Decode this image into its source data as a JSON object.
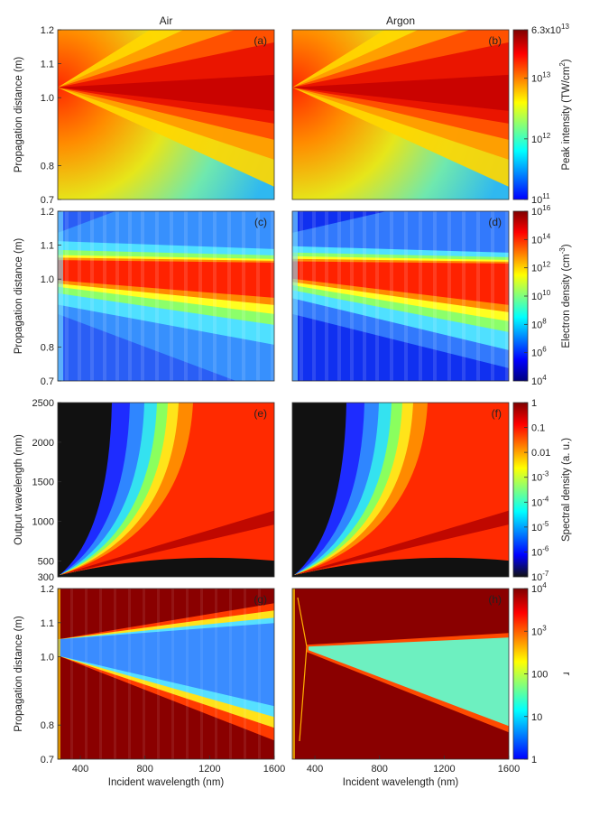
{
  "chart_data": [
    {
      "type": "heatmap",
      "panel": "(a)",
      "column_title": "Air",
      "ylabel": "Propagation distance (m)",
      "xlim": [
        260,
        1600
      ],
      "ylim": [
        0.7,
        1.2
      ],
      "y_ticks": [
        "0.7",
        "0.8",
        "1.0",
        "1.1",
        "1.2"
      ],
      "pattern": "cone",
      "focus_y": 1.03
    },
    {
      "type": "heatmap",
      "panel": "(b)",
      "column_title": "Argon",
      "xlim": [
        260,
        1600
      ],
      "ylim": [
        0.7,
        1.2
      ],
      "pattern": "cone",
      "focus_y": 1.03
    },
    {
      "type": "heatmap",
      "panel": "(c)",
      "ylabel": "Propagation distance (m)",
      "xlim": [
        260,
        1600
      ],
      "ylim": [
        0.7,
        1.2
      ],
      "y_ticks": [
        "0.7",
        "0.8",
        "1.0",
        "1.1",
        "1.2"
      ],
      "pattern": "plasma",
      "focus_y": 1.03
    },
    {
      "type": "heatmap",
      "panel": "(d)",
      "xlim": [
        260,
        1600
      ],
      "ylim": [
        0.7,
        1.2
      ],
      "pattern": "plasma",
      "focus_y": 1.03
    },
    {
      "type": "heatmap",
      "panel": "(e)",
      "ylabel": "Output wavelength (nm)",
      "xlim": [
        260,
        1600
      ],
      "ylim": [
        300,
        2500
      ],
      "y_ticks": [
        "300",
        "500",
        "1000",
        "1500",
        "2000",
        "2500"
      ],
      "pattern": "spectrum"
    },
    {
      "type": "heatmap",
      "panel": "(f)",
      "xlim": [
        260,
        1600
      ],
      "ylim": [
        300,
        2500
      ],
      "pattern": "spectrum"
    },
    {
      "type": "heatmap",
      "panel": "(g)",
      "ylabel": "Propagation distance (m)",
      "xlabel": "Incident wavelength (nm)",
      "xlim": [
        260,
        1600
      ],
      "ylim": [
        0.7,
        1.2
      ],
      "x_ticks": [
        "400",
        "800",
        "1200",
        "1600"
      ],
      "y_ticks": [
        "0.7",
        "0.8",
        "1.0",
        "1.1",
        "1.2"
      ],
      "pattern": "ratio",
      "focus_y": 1.03
    },
    {
      "type": "heatmap",
      "panel": "(h)",
      "xlabel": "Incident wavelength (nm)",
      "xlim": [
        260,
        1600
      ],
      "ylim": [
        0.7,
        1.2
      ],
      "x_ticks": [
        "400",
        "800",
        "1200",
        "1600"
      ],
      "pattern": "ratio",
      "focus_y": 1.03
    }
  ],
  "colorbars": [
    {
      "label_parts": [
        "Peak intensity (TW/cm",
        "2",
        ")"
      ],
      "ticks": [
        {
          "mantissa": "6.3x",
          "base": "10",
          "exp": "13",
          "value": 63000000000000.0
        },
        {
          "mantissa": "",
          "base": "10",
          "exp": "13",
          "value": 10000000000000.0
        },
        {
          "mantissa": "",
          "base": "10",
          "exp": "12",
          "value": 1000000000000.0
        },
        {
          "mantissa": "",
          "base": "10",
          "exp": "11",
          "value": 100000000000.0
        }
      ]
    },
    {
      "label_parts": [
        "Electron density (cm",
        "-3",
        ")"
      ],
      "ticks": [
        {
          "mantissa": "",
          "base": "10",
          "exp": "16",
          "value": 1e+16
        },
        {
          "mantissa": "",
          "base": "10",
          "exp": "14",
          "value": 100000000000000.0
        },
        {
          "mantissa": "",
          "base": "10",
          "exp": "12",
          "value": 1000000000000.0
        },
        {
          "mantissa": "",
          "base": "10",
          "exp": "10",
          "value": 10000000000.0
        },
        {
          "mantissa": "",
          "base": "10",
          "exp": "8",
          "value": 100000000.0
        },
        {
          "mantissa": "",
          "base": "10",
          "exp": "6",
          "value": 1000000.0
        },
        {
          "mantissa": "",
          "base": "10",
          "exp": "4",
          "value": 10000.0
        }
      ]
    },
    {
      "label_parts": [
        "Spectral density (a. u.)",
        "",
        ""
      ],
      "ticks": [
        {
          "mantissa": "1",
          "base": "",
          "exp": "",
          "value": 1
        },
        {
          "mantissa": "0.1",
          "base": "",
          "exp": "",
          "value": 0.1
        },
        {
          "mantissa": "0.01",
          "base": "",
          "exp": "",
          "value": 0.01
        },
        {
          "mantissa": "",
          "base": "10",
          "exp": "-3",
          "value": 0.001
        },
        {
          "mantissa": "",
          "base": "10",
          "exp": "-4",
          "value": 0.0001
        },
        {
          "mantissa": "",
          "base": "10",
          "exp": "-5",
          "value": 1e-05
        },
        {
          "mantissa": "",
          "base": "10",
          "exp": "-6",
          "value": 1e-06
        },
        {
          "mantissa": "",
          "base": "10",
          "exp": "-7",
          "value": 1e-07
        }
      ]
    },
    {
      "label_parts": [
        "ɹ",
        "",
        ""
      ],
      "ticks": [
        {
          "mantissa": "",
          "base": "10",
          "exp": "4",
          "value": 10000.0
        },
        {
          "mantissa": "",
          "base": "10",
          "exp": "3",
          "value": 1000.0
        },
        {
          "mantissa": "100",
          "base": "",
          "exp": "",
          "value": 100
        },
        {
          "mantissa": "10",
          "base": "",
          "exp": "",
          "value": 10
        },
        {
          "mantissa": "1",
          "base": "",
          "exp": "",
          "value": 1
        }
      ]
    }
  ],
  "colors": {
    "jet": [
      "#00007f",
      "#0000ff",
      "#007fff",
      "#00ffff",
      "#7fff7f",
      "#ffff00",
      "#ff7f00",
      "#ff0000",
      "#7f0000"
    ],
    "jet_black": [
      "#111111",
      "#0000ff",
      "#007fff",
      "#00ffff",
      "#7fff7f",
      "#ffff00",
      "#ff7f00",
      "#ff0000",
      "#7f0000"
    ],
    "jet_blue": [
      "#0000ff",
      "#007fff",
      "#00ffff",
      "#7fff7f",
      "#ffff00",
      "#ff7f00",
      "#ff0000",
      "#7f0000"
    ]
  }
}
